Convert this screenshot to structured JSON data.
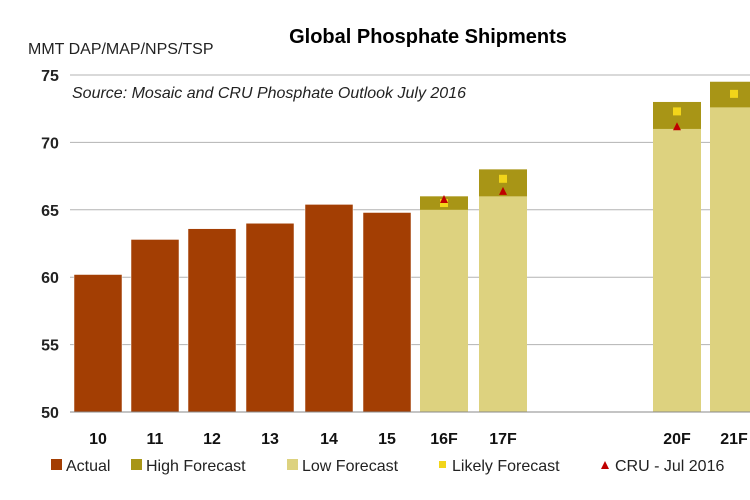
{
  "chart_data": {
    "type": "bar",
    "title": "Global Phosphate Shipments",
    "unit_label": "MMT DAP/MAP/NPS/TSP",
    "source": "Source:  Mosaic and CRU Phosphate Outlook July 2016",
    "ylim": [
      50,
      75
    ],
    "yticks": [
      50,
      55,
      60,
      65,
      70,
      75
    ],
    "categories": [
      "10",
      "11",
      "12",
      "13",
      "14",
      "15",
      "16F",
      "17F",
      "20F",
      "21F"
    ],
    "series": [
      {
        "name": "Actual",
        "color": "#A33E03",
        "values": [
          60.2,
          62.8,
          63.6,
          64.0,
          65.4,
          64.8,
          null,
          null,
          null,
          null
        ]
      },
      {
        "name": "High Forecast",
        "color": "#A89516",
        "values": [
          null,
          null,
          null,
          null,
          null,
          null,
          66.0,
          68.0,
          73.0,
          74.5
        ]
      },
      {
        "name": "Low Forecast",
        "color": "#DDD27F",
        "values": [
          null,
          null,
          null,
          null,
          null,
          null,
          65.0,
          66.0,
          71.0,
          72.6
        ]
      },
      {
        "name": "Likely Forecast",
        "color": "#F2D51A",
        "values": [
          null,
          null,
          null,
          null,
          null,
          null,
          65.5,
          67.3,
          72.3,
          73.6
        ]
      },
      {
        "name": "CRU - Jul 2016",
        "color": "#C00000",
        "values": [
          null,
          null,
          null,
          null,
          null,
          null,
          65.8,
          66.4,
          71.2,
          null
        ]
      }
    ],
    "grid": true,
    "legend_position": "bottom"
  }
}
